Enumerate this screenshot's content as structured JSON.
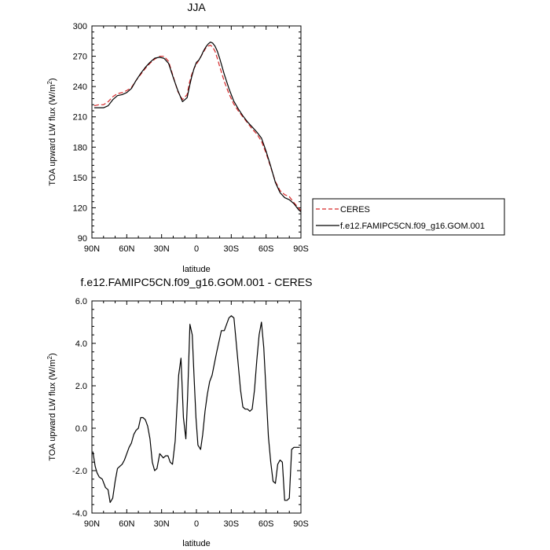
{
  "chart_data": [
    {
      "type": "line",
      "title": "JJA",
      "ylabel": "TOA upward LW flux (W/m",
      "ylabel_sup": "2",
      "ylabel_end": ")",
      "xlabel": "latitude",
      "xlim": [
        90,
        -90
      ],
      "ylim": [
        90,
        300
      ],
      "xticks": [
        90,
        60,
        30,
        0,
        -30,
        -60,
        -90
      ],
      "xtick_labels": [
        "90N",
        "60N",
        "30N",
        "0",
        "30S",
        "60S",
        "90S"
      ],
      "yticks": [
        90,
        120,
        150,
        180,
        210,
        240,
        270,
        300
      ],
      "ytick_labels": [
        "90",
        "120",
        "150",
        "180",
        "210",
        "240",
        "270",
        "300"
      ],
      "legend_placement": "right",
      "series": [
        {
          "name": "CERES",
          "color": "#d62728",
          "dash": "dashed",
          "x": [
            88,
            84,
            80,
            76,
            72,
            68,
            64,
            60,
            56,
            52,
            48,
            44,
            40,
            36,
            32,
            28,
            24,
            20,
            16,
            12,
            8,
            6,
            4,
            2,
            0,
            -2,
            -4,
            -6,
            -8,
            -10,
            -12,
            -14,
            -16,
            -18,
            -20,
            -24,
            -28,
            -32,
            -36,
            -40,
            -44,
            -48,
            -52,
            -56,
            -60,
            -64,
            -68,
            -72,
            -76,
            -80,
            -84,
            -88,
            -90
          ],
          "y": [
            221,
            222,
            222,
            225,
            230,
            233,
            234,
            236,
            239,
            246,
            252,
            258,
            263,
            267,
            270,
            270,
            265,
            250,
            235,
            227,
            232,
            244,
            252,
            258,
            262,
            266,
            270,
            274,
            278,
            280,
            281,
            279,
            275,
            268,
            260,
            245,
            233,
            223,
            216,
            210,
            204,
            198,
            193,
            186,
            174,
            160,
            146,
            137,
            133,
            131,
            125,
            120,
            117
          ]
        },
        {
          "name": "f.e12.FAMIPC5CN.f09_g16.GOM.001",
          "color": "#000000",
          "dash": "solid",
          "x": [
            88,
            84,
            80,
            76,
            72,
            68,
            64,
            60,
            56,
            52,
            48,
            44,
            40,
            36,
            32,
            28,
            24,
            20,
            16,
            12,
            8,
            6,
            4,
            2,
            0,
            -2,
            -4,
            -6,
            -8,
            -10,
            -12,
            -14,
            -16,
            -18,
            -20,
            -24,
            -28,
            -32,
            -36,
            -40,
            -44,
            -48,
            -52,
            -56,
            -60,
            -64,
            -68,
            -72,
            -76,
            -80,
            -84,
            -88,
            -90
          ],
          "y": [
            219,
            219,
            219,
            221,
            227,
            231,
            232,
            234,
            238,
            246,
            253,
            259,
            264,
            268,
            269,
            268,
            263,
            249,
            236,
            225,
            229,
            240,
            250,
            258,
            264,
            266,
            270,
            275,
            279,
            282,
            284,
            283,
            280,
            275,
            268,
            252,
            238,
            226,
            218,
            211,
            205,
            200,
            195,
            189,
            176,
            161,
            145,
            135,
            130,
            128,
            124,
            118,
            116
          ]
        }
      ]
    },
    {
      "type": "line",
      "title": "f.e12.FAMIPC5CN.f09_g16.GOM.001 - CERES",
      "ylabel": "TOA upward LW flux (W/m",
      "ylabel_sup": "2",
      "ylabel_end": ")",
      "xlabel": "latitude",
      "xlim": [
        90,
        -90
      ],
      "ylim": [
        -4.0,
        6.0
      ],
      "xticks": [
        90,
        60,
        30,
        0,
        -30,
        -60,
        -90
      ],
      "xtick_labels": [
        "90N",
        "60N",
        "30N",
        "0",
        "30S",
        "60S",
        "90S"
      ],
      "yticks": [
        -4,
        -2,
        0,
        2,
        4,
        6
      ],
      "ytick_labels": [
        "-4.0",
        "-2.0",
        "0.0",
        "2.0",
        "4.0",
        "6.0"
      ],
      "series": [
        {
          "color": "#000000",
          "dash": "solid",
          "x": [
            89.2,
            87.2,
            85.6,
            83.7,
            81.1,
            78.3,
            76.1,
            74.3,
            72.1,
            70.0,
            68.0,
            66.0,
            64.0,
            62.0,
            60.0,
            58.0,
            56.0,
            54.0,
            52.0,
            50.0,
            48.0,
            46.0,
            44.0,
            42.0,
            40.0,
            38.0,
            36.0,
            34.0,
            31.6,
            28.5,
            26.5,
            24.5,
            22.6,
            20.6,
            18.3,
            15.3,
            13.3,
            11.2,
            9.1,
            7.6,
            5.6,
            3.6,
            2.1,
            0.4,
            -1.3,
            -3.6,
            -5.4,
            -7.4,
            -9.4,
            -11.4,
            -13.5,
            -15.3,
            -17.5,
            -19.5,
            -21.5,
            -24.0,
            -26.0,
            -28.0,
            -30.0,
            -32.3,
            -34.0,
            -36.0,
            -38.0,
            -40.0,
            -42.0,
            -44.0,
            -46.0,
            -48.0,
            -50.0,
            -52.0,
            -54.0,
            -56.0,
            -58.0,
            -60.0,
            -62.0,
            -64.0,
            -66.0,
            -68.0,
            -70.0,
            -72.0,
            -74.0,
            -76.0,
            -78.0,
            -80.0,
            -82.0,
            -84.0,
            -86.0,
            -88.0,
            -89.0
          ],
          "y": [
            -1.1,
            -1.8,
            -2.1,
            -2.3,
            -2.4,
            -2.8,
            -2.9,
            -3.5,
            -3.3,
            -2.5,
            -1.9,
            -1.8,
            -1.7,
            -1.5,
            -1.2,
            -0.9,
            -0.7,
            -0.3,
            -0.1,
            0.0,
            0.5,
            0.5,
            0.4,
            0.1,
            -0.5,
            -1.6,
            -2.0,
            -1.9,
            -1.2,
            -1.4,
            -1.3,
            -1.3,
            -1.6,
            -1.7,
            -0.6,
            2.5,
            3.3,
            0.5,
            -0.5,
            1.5,
            4.9,
            4.4,
            2.5,
            0.5,
            -0.8,
            -1.0,
            -0.3,
            0.8,
            1.6,
            2.2,
            2.5,
            3.0,
            3.6,
            4.1,
            4.6,
            4.6,
            4.9,
            5.2,
            5.3,
            5.2,
            4.2,
            3.0,
            1.8,
            1.0,
            0.9,
            0.9,
            0.8,
            0.9,
            1.8,
            3.2,
            4.4,
            5.0,
            3.8,
            1.7,
            -0.4,
            -1.6,
            -2.5,
            -2.6,
            -1.7,
            -1.5,
            -1.6,
            -3.4,
            -3.4,
            -3.3,
            -1.0,
            -0.9,
            -0.9,
            -0.9,
            -0.9
          ]
        }
      ]
    }
  ]
}
